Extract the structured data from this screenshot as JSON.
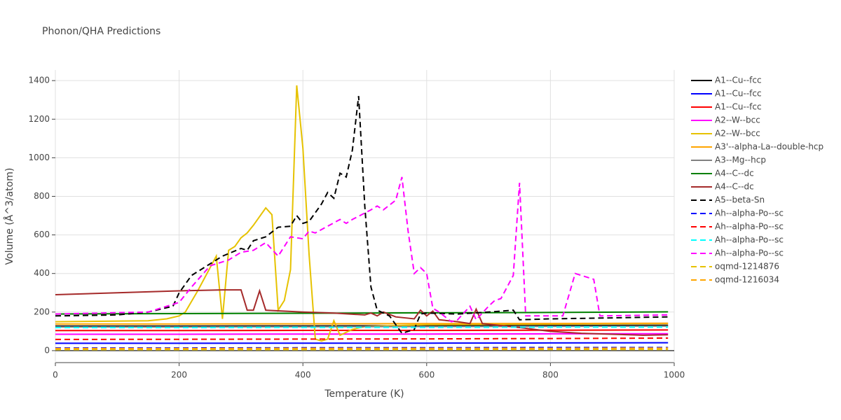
{
  "chart_data": {
    "type": "line",
    "title": "Phonon/QHA Predictions",
    "x_label": "Temperature (K)",
    "y_label": "Volume (Å^3/atom)",
    "xlim": [
      0,
      1000
    ],
    "xticks": [
      0,
      200,
      400,
      600,
      800,
      1000
    ],
    "ylim": [
      -62,
      1455
    ],
    "yticks": [
      0,
      200,
      400,
      600,
      800,
      1000,
      1200,
      1400
    ],
    "grid": true,
    "legend": "right",
    "series": [
      {
        "name": "A1--Cu--fcc",
        "color": "#000000",
        "dash": "solid",
        "x": [
          0,
          200,
          400,
          600,
          800,
          990
        ],
        "values": [
          127,
          127,
          128,
          129,
          130,
          131
        ]
      },
      {
        "name": "A1--Cu--fcc",
        "color": "#0000ff",
        "dash": "solid",
        "x": [
          0,
          200,
          400,
          600,
          800,
          990
        ],
        "values": [
          38,
          38,
          39,
          39,
          40,
          41
        ]
      },
      {
        "name": "A1--Cu--fcc",
        "color": "#ff0000",
        "dash": "solid",
        "x": [
          0,
          200,
          400,
          600,
          800,
          990
        ],
        "values": [
          104,
          104,
          105,
          105,
          106,
          107
        ]
      },
      {
        "name": "A2--W--bcc",
        "color": "#ff00ff",
        "dash": "solid",
        "x": [
          0,
          200,
          400,
          600,
          800,
          990
        ],
        "values": [
          85,
          85,
          86,
          86,
          87,
          88
        ]
      },
      {
        "name": "A2--W--bcc",
        "color": "#e6c200",
        "dash": "solid",
        "x": [
          0,
          150,
          180,
          200,
          210,
          230,
          250,
          260,
          270,
          280,
          290,
          300,
          310,
          320,
          340,
          350,
          360,
          370,
          380,
          390,
          400,
          410,
          420,
          430,
          440,
          450,
          460,
          480,
          500,
          600,
          990
        ],
        "values": [
          150,
          155,
          165,
          180,
          200,
          310,
          430,
          490,
          165,
          520,
          540,
          585,
          610,
          650,
          740,
          705,
          210,
          260,
          420,
          1375,
          1050,
          500,
          60,
          50,
          60,
          155,
          80,
          110,
          125,
          135,
          140
        ]
      },
      {
        "name": "A3'--alpha-La--double-hcp",
        "color": "#ffa500",
        "dash": "solid",
        "x": [
          0,
          200,
          400,
          600,
          800,
          990
        ],
        "values": [
          138,
          138,
          139,
          140,
          141,
          142
        ]
      },
      {
        "name": "A3--Mg--hcp",
        "color": "#808080",
        "dash": "solid",
        "x": [
          0,
          200,
          400,
          600,
          800,
          990
        ],
        "values": [
          123,
          123,
          124,
          125,
          126,
          127
        ]
      },
      {
        "name": "A4--C--dc",
        "color": "#008000",
        "dash": "solid",
        "x": [
          0,
          200,
          400,
          600,
          800,
          990
        ],
        "values": [
          190,
          192,
          194,
          196,
          198,
          201
        ]
      },
      {
        "name": "A4--C--dc",
        "color": "#a52a2a",
        "dash": "solid",
        "x": [
          0,
          100,
          150,
          200,
          270,
          300,
          310,
          320,
          330,
          340,
          400,
          450,
          500,
          510,
          520,
          530,
          550,
          580,
          590,
          600,
          610,
          620,
          650,
          670,
          680,
          690,
          750,
          800,
          850,
          900,
          950,
          990
        ],
        "values": [
          290,
          300,
          305,
          310,
          315,
          315,
          210,
          210,
          310,
          210,
          200,
          195,
          185,
          195,
          180,
          200,
          175,
          165,
          210,
          180,
          205,
          160,
          150,
          140,
          215,
          140,
          120,
          100,
          90,
          85,
          80,
          82
        ]
      },
      {
        "name": "A5--beta-Sn",
        "color": "#000000",
        "dash": "dash",
        "x": [
          0,
          100,
          150,
          190,
          200,
          220,
          250,
          270,
          300,
          310,
          320,
          340,
          360,
          380,
          390,
          400,
          410,
          430,
          440,
          450,
          460,
          470,
          480,
          490,
          500,
          510,
          520,
          540,
          560,
          580,
          590,
          600,
          650,
          700,
          740,
          750,
          800,
          900,
          990
        ],
        "values": [
          180,
          185,
          200,
          230,
          300,
          390,
          450,
          490,
          530,
          520,
          570,
          590,
          640,
          645,
          700,
          660,
          670,
          760,
          820,
          790,
          920,
          900,
          1040,
          1320,
          750,
          330,
          210,
          180,
          90,
          110,
          190,
          195,
          190,
          200,
          210,
          160,
          165,
          170,
          175
        ]
      },
      {
        "name": "Ah--alpha-Po--sc",
        "color": "#0000ff",
        "dash": "dash",
        "x": [
          0,
          200,
          400,
          600,
          800,
          990
        ],
        "values": [
          14,
          14,
          15,
          15,
          16,
          16
        ]
      },
      {
        "name": "Ah--alpha-Po--sc",
        "color": "#ff0000",
        "dash": "dash",
        "x": [
          0,
          200,
          400,
          600,
          800,
          990
        ],
        "values": [
          58,
          59,
          60,
          61,
          63,
          65
        ]
      },
      {
        "name": "Ah--alpha-Po--sc",
        "color": "#00ffff",
        "dash": "dash",
        "x": [
          0,
          200,
          400,
          600,
          800,
          990
        ],
        "values": [
          120,
          120,
          121,
          121,
          122,
          122
        ]
      },
      {
        "name": "Ah--alpha-Po--sc",
        "color": "#ff00ff",
        "dash": "dash",
        "x": [
          0,
          150,
          200,
          220,
          250,
          280,
          300,
          320,
          340,
          360,
          380,
          400,
          410,
          420,
          460,
          470,
          480,
          510,
          520,
          530,
          550,
          560,
          570,
          580,
          590,
          600,
          610,
          620,
          640,
          650,
          670,
          680,
          700,
          710,
          720,
          740,
          750,
          760,
          800,
          820,
          840,
          870,
          880,
          990
        ],
        "values": [
          190,
          200,
          250,
          330,
          440,
          470,
          510,
          520,
          560,
          490,
          590,
          580,
          620,
          610,
          680,
          660,
          680,
          730,
          750,
          730,
          780,
          900,
          620,
          400,
          430,
          400,
          220,
          200,
          150,
          160,
          230,
          160,
          230,
          260,
          270,
          390,
          870,
          180,
          180,
          180,
          400,
          370,
          180,
          185
        ]
      },
      {
        "name": "oqmd-1214876",
        "color": "#e6c200",
        "dash": "dash",
        "x": [
          0,
          200,
          400,
          600,
          800,
          990
        ],
        "values": [
          5,
          5,
          5,
          6,
          6,
          6
        ]
      },
      {
        "name": "oqmd-1216034",
        "color": "#ffa500",
        "dash": "dash",
        "x": [
          0,
          200,
          400,
          600,
          800,
          990
        ],
        "values": [
          11,
          11,
          12,
          12,
          12,
          13
        ]
      }
    ]
  }
}
